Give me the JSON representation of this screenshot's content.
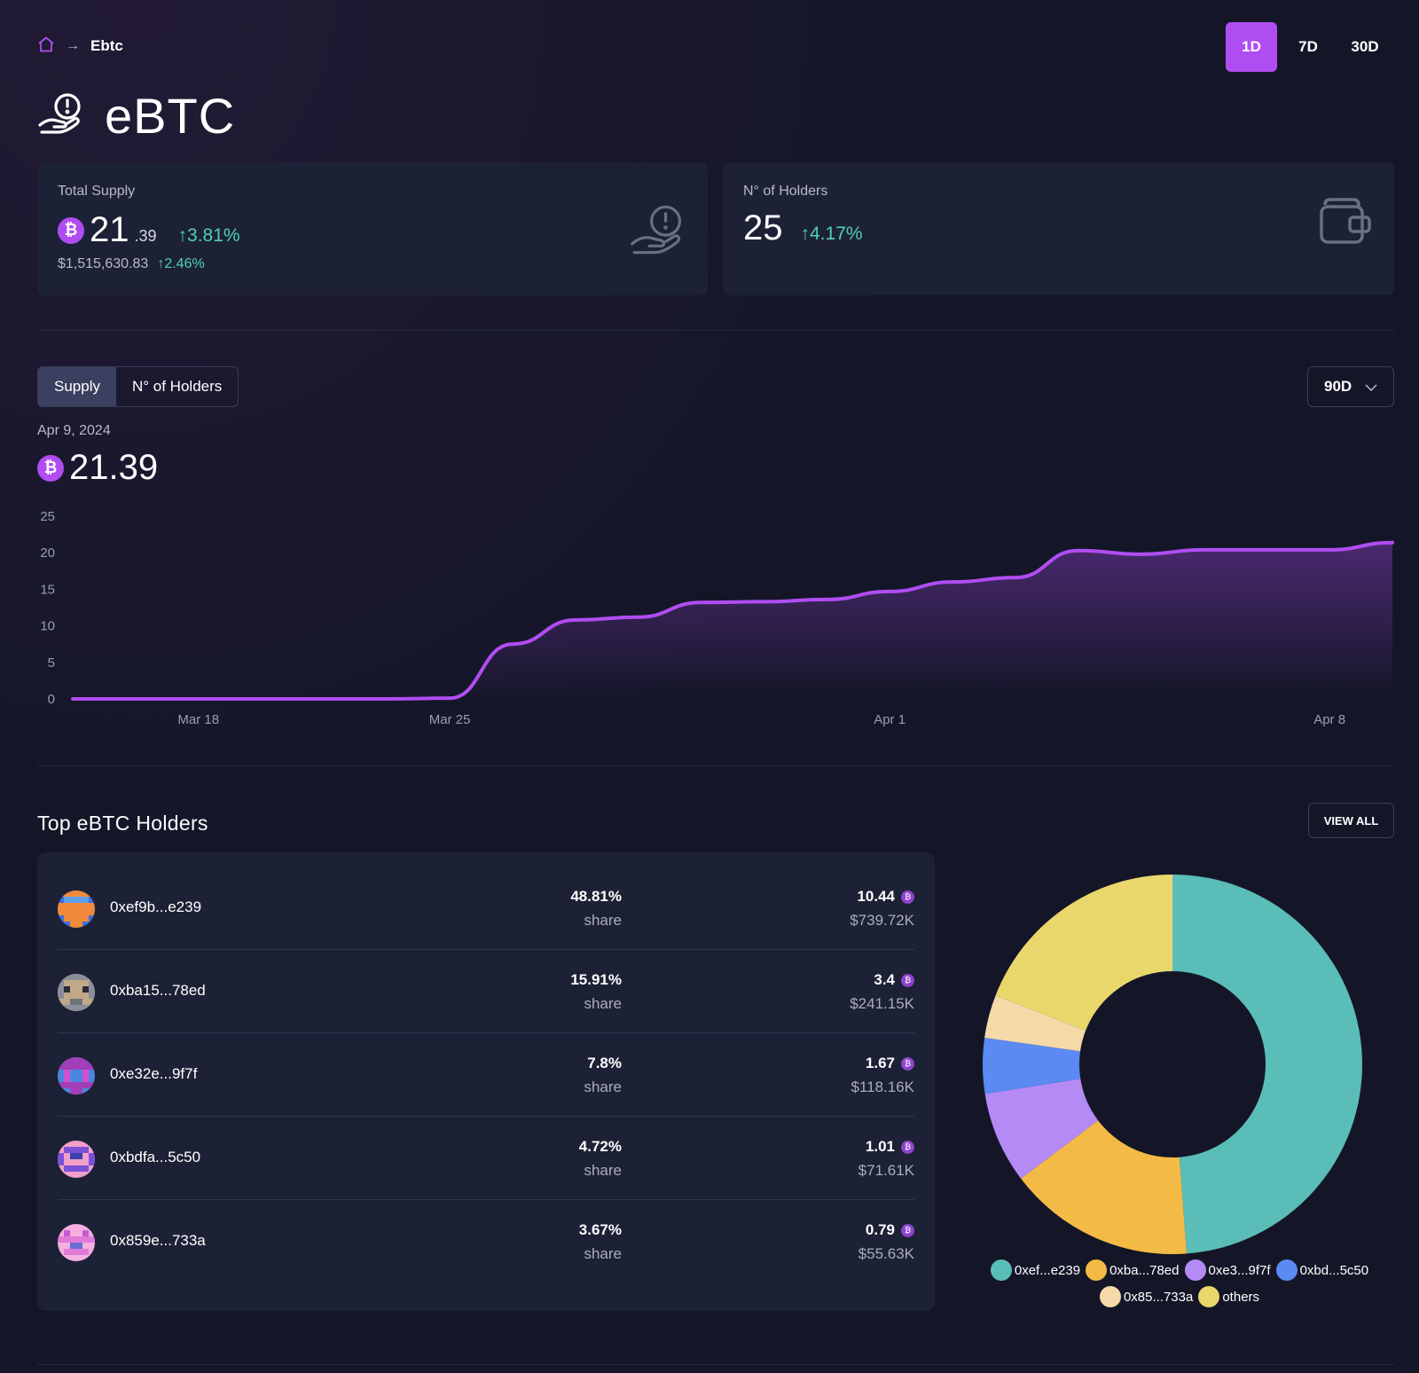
{
  "breadcrumb": {
    "current": "Ebtc"
  },
  "period_tabs": [
    {
      "label": "1D",
      "active": true
    },
    {
      "label": "7D",
      "active": false
    },
    {
      "label": "30D",
      "active": false
    }
  ],
  "page_title": "eBTC",
  "supply_card": {
    "label": "Total Supply",
    "value_int": "21",
    "value_dec": ".39",
    "change": "↑3.81%",
    "usd": "$1,515,630.83",
    "usd_change": "↑2.46%"
  },
  "holders_card": {
    "label": "N° of Holders",
    "value": "25",
    "change": "↑4.17%"
  },
  "chart_controls": {
    "tabs": [
      "Supply",
      "N° of Holders"
    ],
    "active_tab": "Supply",
    "range": "90D"
  },
  "chart_header": {
    "date": "Apr 9, 2024",
    "value": "21.39"
  },
  "chart_data": {
    "type": "area",
    "title": "",
    "xlabel": "",
    "ylabel": "",
    "ylim": [
      0,
      25
    ],
    "y_ticks": [
      "25",
      "20",
      "15",
      "10",
      "5",
      "0"
    ],
    "x_ticks": [
      "Mar 18",
      "Mar 25",
      "Apr 1",
      "Apr 8"
    ],
    "x": [
      "Mar 14",
      "Mar 16",
      "Mar 18",
      "Mar 20",
      "Mar 22",
      "Mar 24",
      "Mar 25",
      "Mar 26",
      "Mar 27",
      "Mar 28",
      "Mar 29",
      "Mar 30",
      "Mar 31",
      "Apr 1",
      "Apr 2",
      "Apr 3",
      "Apr 4",
      "Apr 5",
      "Apr 6",
      "Apr 7",
      "Apr 8",
      "Apr 9"
    ],
    "series": [
      {
        "values": [
          0,
          0,
          0,
          0,
          0,
          0,
          0.1,
          7.5,
          10.8,
          11.2,
          13.2,
          13.3,
          13.6,
          14.7,
          16.0,
          16.6,
          20.3,
          19.8,
          20.4,
          20.4,
          20.4,
          21.39
        ]
      }
    ],
    "grid": false,
    "color": "#b04df2"
  },
  "holders_section": {
    "title": "Top eBTC Holders",
    "view_all": "VIEW ALL",
    "rows": [
      {
        "address": "0xef9b...e239",
        "share": "48.81%",
        "share_label": "share",
        "amount": "10.44",
        "usd": "$739.72K"
      },
      {
        "address": "0xba15...78ed",
        "share": "15.91%",
        "share_label": "share",
        "amount": "3.4",
        "usd": "$241.15K"
      },
      {
        "address": "0xe32e...9f7f",
        "share": "7.8%",
        "share_label": "share",
        "amount": "1.67",
        "usd": "$118.16K"
      },
      {
        "address": "0xbdfa...5c50",
        "share": "4.72%",
        "share_label": "share",
        "amount": "1.01",
        "usd": "$71.61K"
      },
      {
        "address": "0x859e...733a",
        "share": "3.67%",
        "share_label": "share",
        "amount": "0.79",
        "usd": "$55.63K"
      }
    ]
  },
  "donut": {
    "slices": [
      {
        "label": "0xef...e239",
        "value": 48.81,
        "color": "#5bbdb7"
      },
      {
        "label": "0xba...78ed",
        "value": 15.91,
        "color": "#f3bb45"
      },
      {
        "label": "0xe3...9f7f",
        "value": 7.8,
        "color": "#b48af5"
      },
      {
        "label": "0xbd...5c50",
        "value": 4.72,
        "color": "#5a8af2"
      },
      {
        "label": "0x85...733a",
        "value": 3.67,
        "color": "#f5d9a8"
      },
      {
        "label": "others",
        "value": 19.09,
        "color": "#ead76c"
      }
    ]
  },
  "colors": {
    "accent": "#b04df2",
    "positive": "#4fd1b6",
    "background": "#141628",
    "card": "#1d2136"
  }
}
